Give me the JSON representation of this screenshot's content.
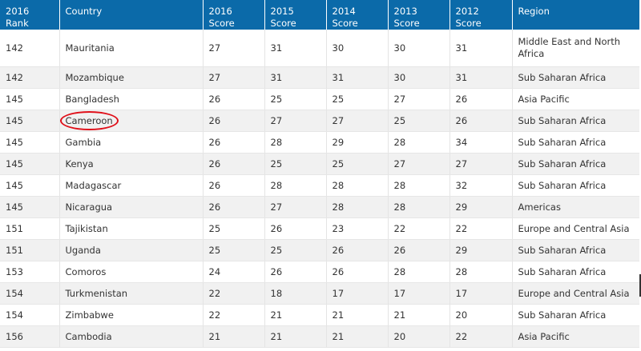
{
  "headers": [
    "2016 Rank",
    "Country",
    "2016 Score",
    "2015 Score",
    "2014 Score",
    "2013 Score",
    "2012 Score",
    "Region"
  ],
  "rows": [
    {
      "rank": "142",
      "country": "Mauritania",
      "s2016": "27",
      "s2015": "31",
      "s2014": "30",
      "s2013": "30",
      "s2012": "31",
      "region": "Middle East and North Africa"
    },
    {
      "rank": "142",
      "country": "Mozambique",
      "s2016": "27",
      "s2015": "31",
      "s2014": "31",
      "s2013": "30",
      "s2012": "31",
      "region": "Sub Saharan Africa"
    },
    {
      "rank": "145",
      "country": "Bangladesh",
      "s2016": "26",
      "s2015": "25",
      "s2014": "25",
      "s2013": "27",
      "s2012": "26",
      "region": "Asia Pacific"
    },
    {
      "rank": "145",
      "country": "Cameroon",
      "s2016": "26",
      "s2015": "27",
      "s2014": "27",
      "s2013": "25",
      "s2012": "26",
      "region": "Sub Saharan Africa"
    },
    {
      "rank": "145",
      "country": "Gambia",
      "s2016": "26",
      "s2015": "28",
      "s2014": "29",
      "s2013": "28",
      "s2012": "34",
      "region": "Sub Saharan Africa"
    },
    {
      "rank": "145",
      "country": "Kenya",
      "s2016": "26",
      "s2015": "25",
      "s2014": "25",
      "s2013": "27",
      "s2012": "27",
      "region": "Sub Saharan Africa"
    },
    {
      "rank": "145",
      "country": "Madagascar",
      "s2016": "26",
      "s2015": "28",
      "s2014": "28",
      "s2013": "28",
      "s2012": "32",
      "region": "Sub Saharan Africa"
    },
    {
      "rank": "145",
      "country": "Nicaragua",
      "s2016": "26",
      "s2015": "27",
      "s2014": "28",
      "s2013": "28",
      "s2012": "29",
      "region": "Americas"
    },
    {
      "rank": "151",
      "country": "Tajikistan",
      "s2016": "25",
      "s2015": "26",
      "s2014": "23",
      "s2013": "22",
      "s2012": "22",
      "region": "Europe and Central Asia"
    },
    {
      "rank": "151",
      "country": "Uganda",
      "s2016": "25",
      "s2015": "25",
      "s2014": "26",
      "s2013": "26",
      "s2012": "29",
      "region": "Sub Saharan Africa"
    },
    {
      "rank": "153",
      "country": "Comoros",
      "s2016": "24",
      "s2015": "26",
      "s2014": "26",
      "s2013": "28",
      "s2012": "28",
      "region": "Sub Saharan Africa"
    },
    {
      "rank": "154",
      "country": "Turkmenistan",
      "s2016": "22",
      "s2015": "18",
      "s2014": "17",
      "s2013": "17",
      "s2012": "17",
      "region": "Europe and Central Asia"
    },
    {
      "rank": "154",
      "country": "Zimbabwe",
      "s2016": "22",
      "s2015": "21",
      "s2014": "21",
      "s2013": "21",
      "s2012": "20",
      "region": "Sub Saharan Africa"
    },
    {
      "rank": "156",
      "country": "Cambodia",
      "s2016": "21",
      "s2015": "21",
      "s2014": "21",
      "s2013": "20",
      "s2012": "22",
      "region": "Asia Pacific"
    }
  ],
  "highlight": {
    "country": "Cameroon",
    "color": "#e0101a"
  },
  "colors": {
    "header_bg": "#0b6aa9",
    "header_text": "#ffffff",
    "row_alt": "#f1f1f1"
  }
}
